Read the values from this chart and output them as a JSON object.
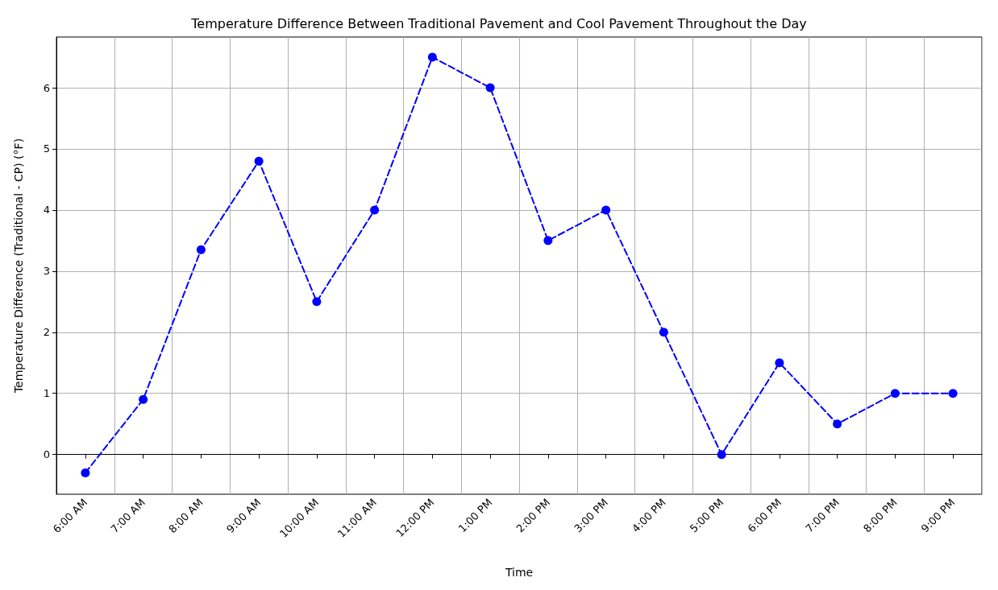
{
  "chart_data": {
    "type": "line",
    "title": "Temperature Difference Between Traditional Pavement and Cool Pavement Throughout the Day",
    "xlabel": "Time",
    "ylabel": "Temperature Difference (Traditional - CP) (°F)",
    "categories": [
      "6:00 AM",
      "7:00 AM",
      "8:00 AM",
      "9:00 AM",
      "10:00 AM",
      "11:00 AM",
      "12:00 PM",
      "1:00 PM",
      "2:00 PM",
      "3:00 PM",
      "4:00 PM",
      "5:00 PM",
      "6:00 PM",
      "7:00 PM",
      "8:00 PM",
      "9:00 PM"
    ],
    "values": [
      -0.3,
      0.9,
      3.35,
      4.8,
      2.5,
      4.0,
      6.5,
      6.0,
      3.5,
      4.0,
      2.0,
      0.0,
      1.5,
      0.5,
      1.0,
      1.0
    ],
    "color": "#0000ff",
    "marker": "circle",
    "line_style": "dashed",
    "grid": true,
    "ylim": [
      -0.65,
      6.83
    ],
    "yticks": [
      0,
      1,
      2,
      3,
      4,
      5,
      6
    ]
  }
}
